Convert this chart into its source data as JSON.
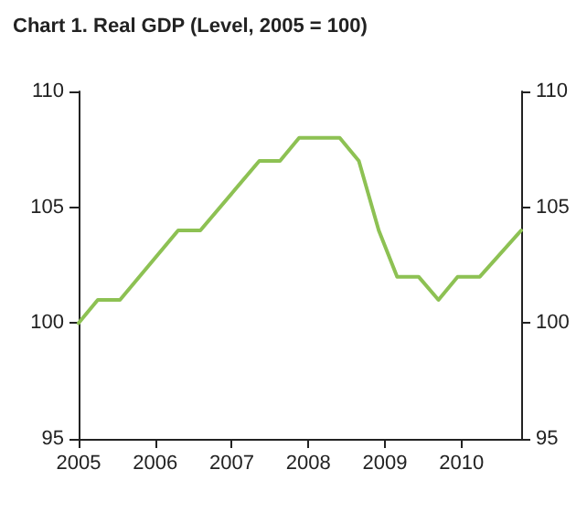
{
  "chart_data": {
    "type": "line",
    "title": "Chart 1. Real GDP (Level, 2005 = 100)",
    "x": [
      2005,
      2005.25,
      2005.54,
      2006.3,
      2006.59,
      2007.36,
      2007.63,
      2007.88,
      2008.41,
      2008.66,
      2008.92,
      2009.16,
      2009.44,
      2009.7,
      2009.95,
      2010.24,
      2010.78
    ],
    "series": [
      {
        "color": "#8dc153",
        "values": [
          100,
          101,
          101,
          104,
          104,
          107,
          107,
          108,
          108,
          107,
          104,
          102,
          102,
          101,
          102,
          102,
          104
        ]
      }
    ],
    "xlim": [
      2005,
      2010.78
    ],
    "xticks": [
      2005,
      2006,
      2007,
      2008,
      2009,
      2010
    ],
    "ylim": [
      95,
      110
    ],
    "yticks": [
      95,
      100,
      105,
      110
    ],
    "y2lim": [
      95,
      110
    ],
    "y2ticks": [
      95,
      100,
      105,
      110
    ],
    "grid": false,
    "marker": "none",
    "line_style": "solid"
  }
}
